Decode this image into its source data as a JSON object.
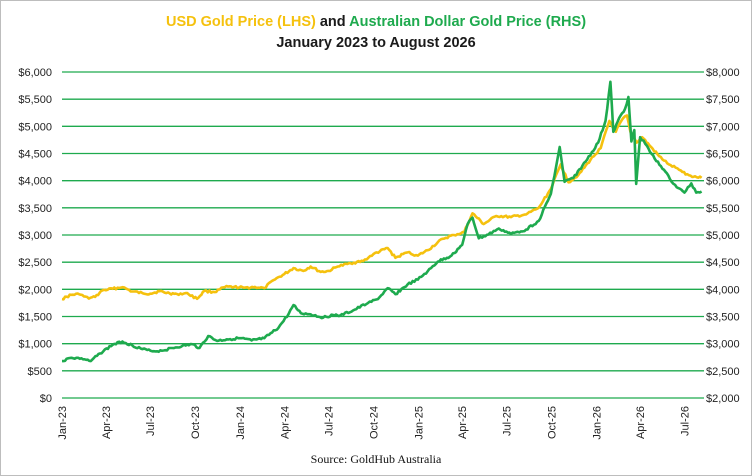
{
  "title": {
    "usd_part": "USD Gold Price (LHS)",
    "joiner": " and ",
    "aud_part": "Australian Dollar Gold Price (RHS)",
    "subtitle": "January 2023 to August 2026"
  },
  "source": "Source: GoldHub Australia",
  "colors": {
    "usd": "#f5c10e",
    "aud": "#1eaa4e",
    "grid": "#1eaa4e"
  },
  "chart_data": {
    "type": "line",
    "title": "USD Gold Price (LHS) and Australian Dollar Gold Price (RHS)",
    "subtitle": "January 2023 to August 2026",
    "grid": true,
    "x_range": [
      "2023-01-01",
      "2026-08-10"
    ],
    "x_tick_labels": [
      "Jan-23",
      "Apr-23",
      "Jul-23",
      "Oct-23",
      "Jan-24",
      "Apr-24",
      "Jul-24",
      "Oct-24",
      "Jan-25",
      "Apr-25",
      "Jul-25",
      "Oct-25",
      "Jan-26",
      "Apr-26",
      "Jul-26"
    ],
    "x_tick_dates": [
      "2023-01-01",
      "2023-04-01",
      "2023-07-01",
      "2023-10-01",
      "2024-01-01",
      "2024-04-01",
      "2024-07-01",
      "2024-10-01",
      "2025-01-01",
      "2025-04-01",
      "2025-07-01",
      "2025-10-01",
      "2026-01-01",
      "2026-04-01",
      "2026-07-01"
    ],
    "y_left": {
      "range": [
        0,
        6000
      ],
      "tick_values": [
        0,
        500,
        1000,
        1500,
        2000,
        2500,
        3000,
        3500,
        4000,
        4500,
        5000,
        5500,
        6000
      ],
      "tick_labels": [
        "$0",
        "$500",
        "$1,000",
        "$1,500",
        "$2,000",
        "$2,500",
        "$3,000",
        "$3,500",
        "$4,000",
        "$4,500",
        "$5,000",
        "$5,500",
        "$6,000"
      ]
    },
    "y_right": {
      "range": [
        2000,
        8000
      ],
      "tick_values": [
        2000,
        2500,
        3000,
        3500,
        4000,
        4500,
        5000,
        5500,
        6000,
        6500,
        7000,
        7500,
        8000
      ],
      "tick_labels": [
        "$2,000",
        "$2,500",
        "$3,000",
        "$3,500",
        "$4,000",
        "$4,500",
        "$5,000",
        "$5,500",
        "$6,000",
        "$6,500",
        "$7,000",
        "$7,500",
        "$8,000"
      ]
    },
    "series": [
      {
        "name": "USD Gold Price (LHS)",
        "axis": "left",
        "color": "#f5c10e",
        "points": [
          [
            "2023-01-01",
            1820
          ],
          [
            "2023-01-20",
            1900
          ],
          [
            "2023-02-05",
            1910
          ],
          [
            "2023-02-25",
            1830
          ],
          [
            "2023-03-10",
            1860
          ],
          [
            "2023-03-25",
            1980
          ],
          [
            "2023-04-15",
            2010
          ],
          [
            "2023-05-05",
            2040
          ],
          [
            "2023-05-25",
            1960
          ],
          [
            "2023-06-15",
            1930
          ],
          [
            "2023-07-01",
            1920
          ],
          [
            "2023-07-20",
            1965
          ],
          [
            "2023-08-10",
            1925
          ],
          [
            "2023-08-25",
            1915
          ],
          [
            "2023-09-15",
            1930
          ],
          [
            "2023-10-05",
            1825
          ],
          [
            "2023-10-20",
            1970
          ],
          [
            "2023-11-10",
            1950
          ],
          [
            "2023-12-01",
            2040
          ],
          [
            "2023-12-20",
            2045
          ],
          [
            "2024-01-10",
            2030
          ],
          [
            "2024-02-01",
            2045
          ],
          [
            "2024-02-20",
            2020
          ],
          [
            "2024-03-10",
            2170
          ],
          [
            "2024-04-01",
            2280
          ],
          [
            "2024-04-20",
            2390
          ],
          [
            "2024-05-10",
            2340
          ],
          [
            "2024-05-25",
            2420
          ],
          [
            "2024-06-15",
            2320
          ],
          [
            "2024-07-01",
            2340
          ],
          [
            "2024-07-20",
            2420
          ],
          [
            "2024-08-15",
            2480
          ],
          [
            "2024-09-10",
            2520
          ],
          [
            "2024-10-01",
            2650
          ],
          [
            "2024-10-30",
            2760
          ],
          [
            "2024-11-15",
            2580
          ],
          [
            "2024-12-10",
            2680
          ],
          [
            "2024-12-31",
            2620
          ],
          [
            "2025-01-20",
            2720
          ],
          [
            "2025-02-20",
            2930
          ],
          [
            "2025-03-15",
            3000
          ],
          [
            "2025-04-05",
            3050
          ],
          [
            "2025-04-22",
            3400
          ],
          [
            "2025-05-15",
            3200
          ],
          [
            "2025-06-10",
            3350
          ],
          [
            "2025-07-10",
            3330
          ],
          [
            "2025-08-10",
            3380
          ],
          [
            "2025-09-05",
            3500
          ],
          [
            "2025-09-30",
            3850
          ],
          [
            "2025-10-20",
            4300
          ],
          [
            "2025-11-05",
            3970
          ],
          [
            "2025-11-25",
            4100
          ],
          [
            "2025-12-20",
            4380
          ],
          [
            "2026-01-10",
            4600
          ],
          [
            "2026-01-28",
            5100
          ],
          [
            "2026-02-10",
            4900
          ],
          [
            "2026-02-25",
            5150
          ],
          [
            "2026-03-05",
            5200
          ],
          [
            "2026-03-12",
            4900
          ],
          [
            "2026-03-25",
            4700
          ],
          [
            "2026-04-05",
            4800
          ],
          [
            "2026-04-20",
            4650
          ],
          [
            "2026-05-10",
            4450
          ],
          [
            "2026-05-30",
            4300
          ],
          [
            "2026-06-20",
            4200
          ],
          [
            "2026-07-10",
            4100
          ],
          [
            "2026-08-05",
            4050
          ]
        ]
      },
      {
        "name": "Australian Dollar Gold Price (RHS)",
        "axis": "right",
        "color": "#1eaa4e",
        "points": [
          [
            "2023-01-01",
            2680
          ],
          [
            "2023-01-20",
            2740
          ],
          [
            "2023-02-10",
            2730
          ],
          [
            "2023-03-01",
            2680
          ],
          [
            "2023-03-20",
            2820
          ],
          [
            "2023-04-15",
            2980
          ],
          [
            "2023-05-05",
            3040
          ],
          [
            "2023-05-25",
            2970
          ],
          [
            "2023-06-15",
            2900
          ],
          [
            "2023-07-05",
            2860
          ],
          [
            "2023-07-25",
            2870
          ],
          [
            "2023-08-15",
            2920
          ],
          [
            "2023-09-05",
            2960
          ],
          [
            "2023-09-25",
            2990
          ],
          [
            "2023-10-10",
            2920
          ],
          [
            "2023-10-28",
            3140
          ],
          [
            "2023-11-15",
            3050
          ],
          [
            "2023-12-05",
            3080
          ],
          [
            "2024-01-01",
            3100
          ],
          [
            "2024-01-25",
            3060
          ],
          [
            "2024-02-20",
            3100
          ],
          [
            "2024-03-20",
            3290
          ],
          [
            "2024-04-10",
            3550
          ],
          [
            "2024-04-20",
            3710
          ],
          [
            "2024-05-05",
            3560
          ],
          [
            "2024-05-25",
            3540
          ],
          [
            "2024-06-20",
            3480
          ],
          [
            "2024-07-10",
            3530
          ],
          [
            "2024-07-25",
            3520
          ],
          [
            "2024-08-20",
            3610
          ],
          [
            "2024-09-20",
            3750
          ],
          [
            "2024-10-10",
            3820
          ],
          [
            "2024-10-30",
            4020
          ],
          [
            "2024-11-15",
            3910
          ],
          [
            "2024-12-10",
            4090
          ],
          [
            "2024-12-31",
            4180
          ],
          [
            "2025-01-20",
            4330
          ],
          [
            "2025-02-10",
            4510
          ],
          [
            "2025-03-10",
            4620
          ],
          [
            "2025-04-01",
            4820
          ],
          [
            "2025-04-12",
            5200
          ],
          [
            "2025-04-22",
            5320
          ],
          [
            "2025-05-05",
            4940
          ],
          [
            "2025-05-25",
            5010
          ],
          [
            "2025-06-15",
            5120
          ],
          [
            "2025-07-10",
            5020
          ],
          [
            "2025-08-10",
            5100
          ],
          [
            "2025-09-05",
            5260
          ],
          [
            "2025-09-30",
            5760
          ],
          [
            "2025-10-18",
            6620
          ],
          [
            "2025-10-28",
            5980
          ],
          [
            "2025-11-15",
            6050
          ],
          [
            "2025-12-10",
            6350
          ],
          [
            "2026-01-05",
            6700
          ],
          [
            "2026-01-20",
            7100
          ],
          [
            "2026-01-30",
            7820
          ],
          [
            "2026-02-05",
            6900
          ],
          [
            "2026-02-20",
            7200
          ],
          [
            "2026-03-01",
            7320
          ],
          [
            "2026-03-08",
            7540
          ],
          [
            "2026-03-14",
            6720
          ],
          [
            "2026-03-20",
            6930
          ],
          [
            "2026-03-24",
            5940
          ],
          [
            "2026-04-01",
            6800
          ],
          [
            "2026-04-15",
            6640
          ],
          [
            "2026-05-01",
            6400
          ],
          [
            "2026-05-20",
            6200
          ],
          [
            "2026-06-01",
            6030
          ],
          [
            "2026-06-15",
            5880
          ],
          [
            "2026-07-01",
            5780
          ],
          [
            "2026-07-15",
            5950
          ],
          [
            "2026-07-25",
            5780
          ],
          [
            "2026-08-05",
            5800
          ]
        ]
      }
    ]
  }
}
